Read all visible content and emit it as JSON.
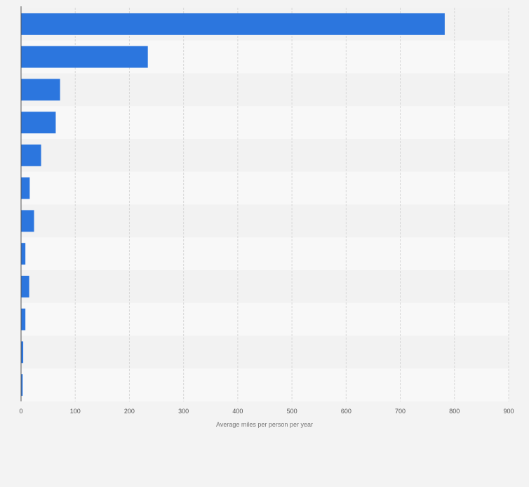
{
  "chart_data": {
    "type": "bar",
    "orientation": "horizontal",
    "title": "",
    "xlabel": "Average miles per person per year",
    "ylabel": "",
    "xlim": [
      0,
      900
    ],
    "x_ticks": [
      0,
      100,
      200,
      300,
      400,
      500,
      600,
      700,
      800,
      900
    ],
    "x_tick_labels": [
      "0",
      "100",
      "200",
      "300",
      "400",
      "500",
      "600",
      "700",
      "800",
      "900"
    ],
    "grid": true,
    "categories": [
      "",
      "",
      "",
      "",
      "",
      "",
      "",
      "",
      "",
      "",
      "",
      ""
    ],
    "values": [
      782,
      234,
      72,
      64,
      37,
      16,
      24,
      8,
      15,
      8,
      4,
      3
    ]
  },
  "colors": {
    "bar": "#2c76de",
    "band_dark": "#f2f2f2",
    "band_light": "#f8f8f8",
    "grid": "#d7d7d7",
    "axis": "#555555",
    "tick_text": "#555555",
    "page_bg": "#f3f3f3"
  }
}
